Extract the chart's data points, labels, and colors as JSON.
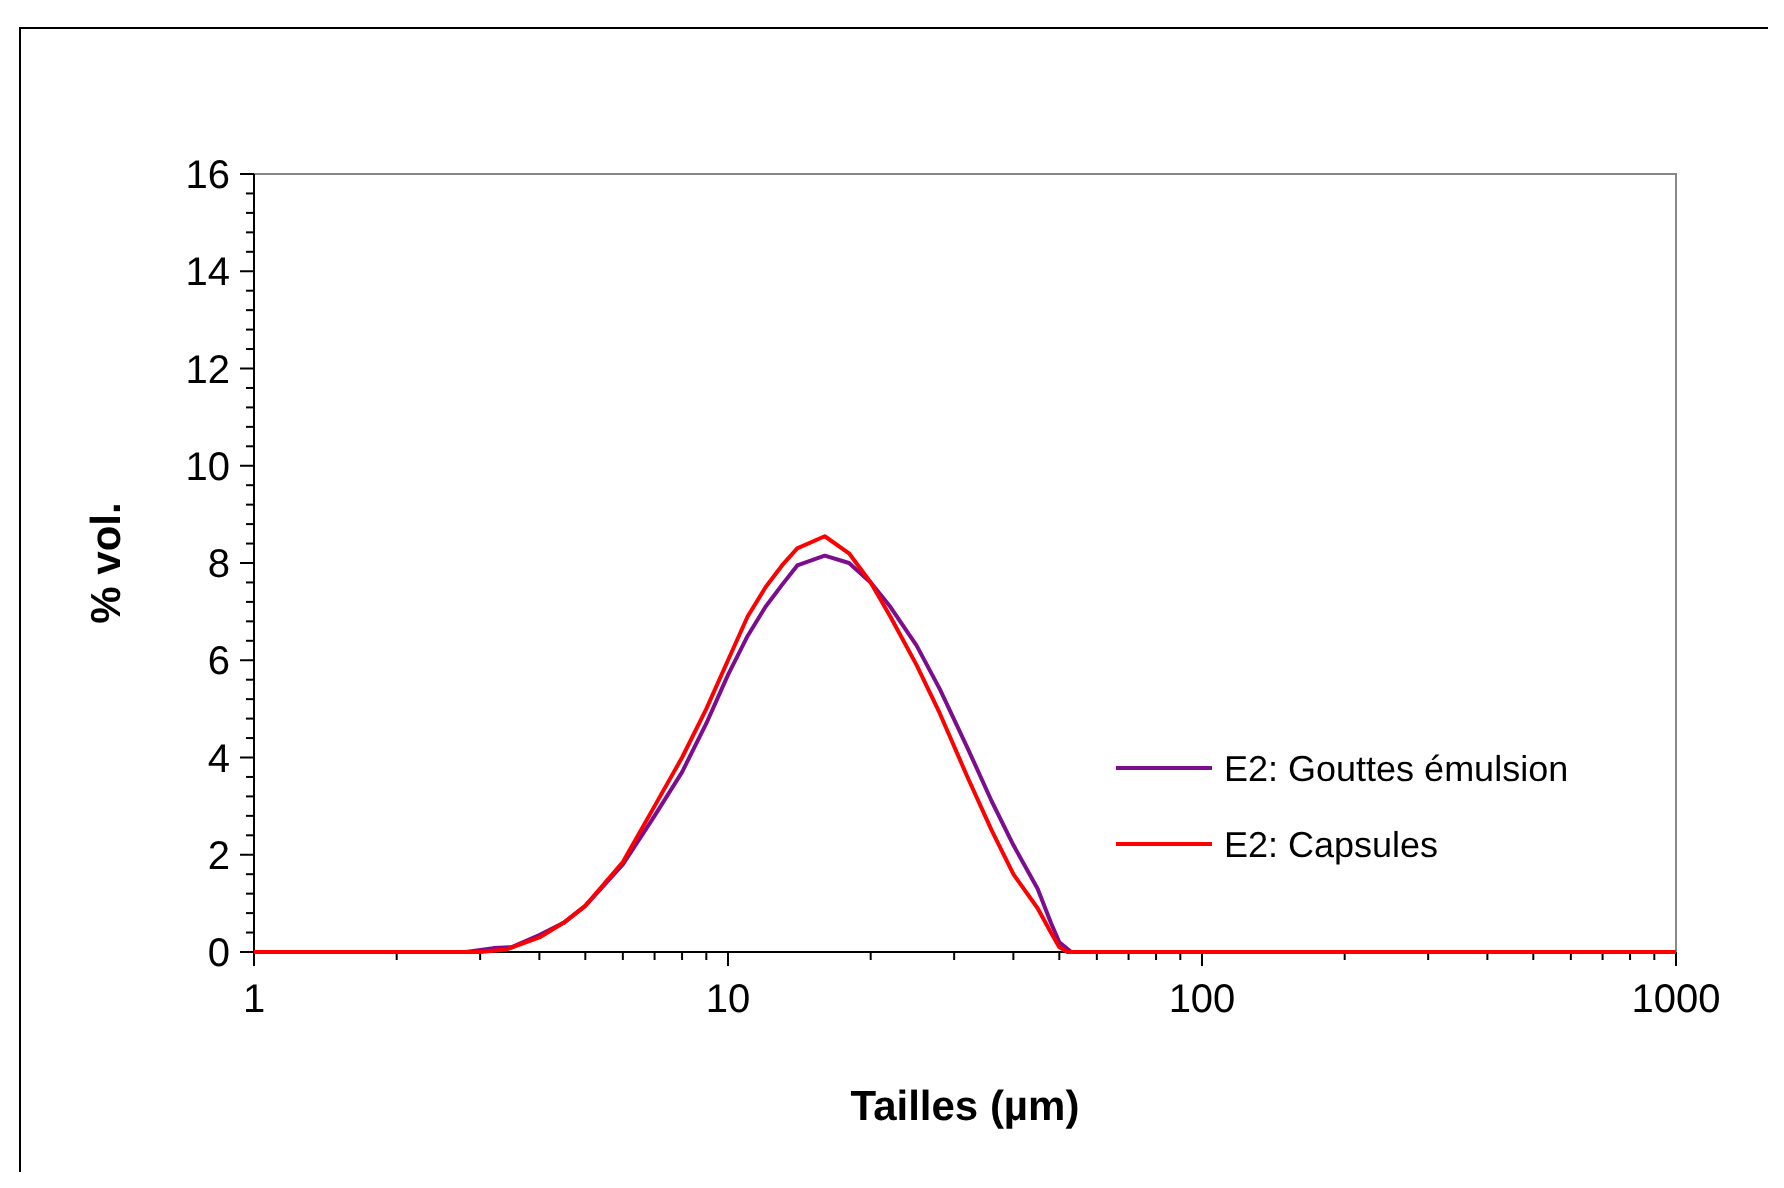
{
  "chart_data": {
    "type": "line",
    "xlabel": "Tailles (µm)",
    "ylabel": "% vol.",
    "log": "x",
    "xlim": [
      1,
      1000
    ],
    "xticks": [
      1,
      10,
      100,
      1000
    ],
    "ylim": [
      0,
      16
    ],
    "yticks": [
      0,
      2,
      4,
      6,
      8,
      10,
      12,
      14,
      16
    ],
    "grid": false,
    "legend": "right",
    "marker": "none",
    "line_style": "solid",
    "series": [
      {
        "name": "E2: Gouttes émulsion",
        "color": "#7b0d8e",
        "x": [
          1,
          2.8,
          3.2,
          3.5,
          4,
          4.5,
          5,
          6,
          7,
          8,
          9,
          10,
          11,
          12,
          13,
          14,
          16,
          18,
          20,
          22,
          25,
          28,
          32,
          36,
          40,
          45,
          48,
          50,
          53,
          1000
        ],
        "values": [
          0,
          0,
          0.08,
          0.1,
          0.35,
          0.6,
          0.95,
          1.8,
          2.8,
          3.7,
          4.7,
          5.7,
          6.5,
          7.1,
          7.55,
          7.95,
          8.15,
          8,
          7.6,
          7.1,
          6.3,
          5.4,
          4.2,
          3.1,
          2.2,
          1.3,
          0.6,
          0.2,
          0,
          0
        ]
      },
      {
        "name": "E2: Capsules",
        "color": "#ff0000",
        "x": [
          1,
          3,
          3.4,
          4,
          4.5,
          5,
          6,
          7,
          8,
          9,
          10,
          11,
          12,
          13,
          14,
          16,
          18,
          20,
          22,
          25,
          28,
          32,
          36,
          40,
          45,
          48,
          50,
          52,
          1000
        ],
        "values": [
          0,
          0,
          0.05,
          0.3,
          0.6,
          0.95,
          1.85,
          3,
          4,
          5,
          6,
          6.9,
          7.5,
          7.95,
          8.3,
          8.55,
          8.2,
          7.6,
          6.9,
          5.9,
          4.9,
          3.6,
          2.5,
          1.6,
          0.9,
          0.4,
          0.1,
          0,
          0
        ]
      }
    ]
  }
}
